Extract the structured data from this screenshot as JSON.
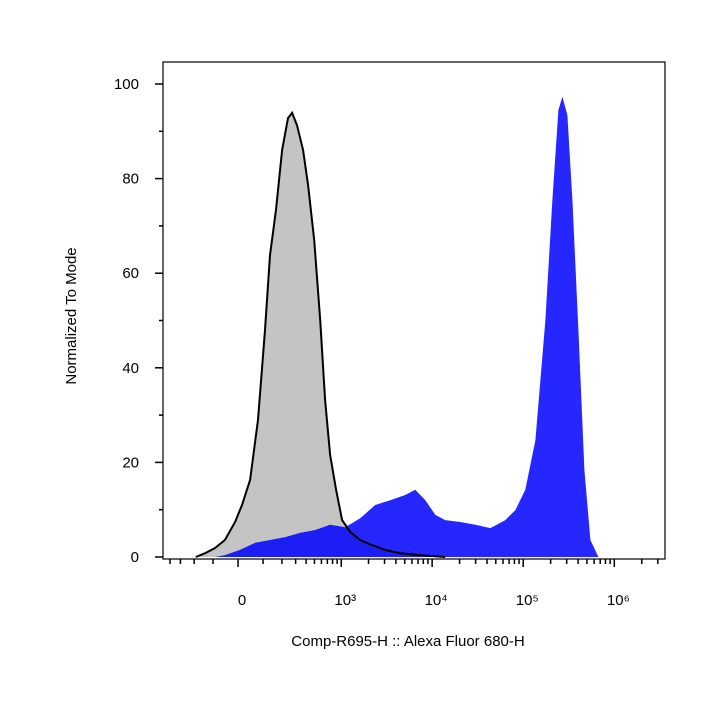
{
  "chart_data": {
    "type": "histogram-overlay",
    "x_scale": "biexponential",
    "xlabel": "Comp-R695-H :: Alexa Fluor 680-H",
    "ylabel": "Normalized To Mode",
    "xlim": [
      -482,
      3600000
    ],
    "ylim": [
      0,
      100
    ],
    "xticks": [
      0,
      {
        "value": 1000,
        "label": "10³"
      },
      {
        "value": 10000,
        "label": "10⁴"
      },
      {
        "value": 100000,
        "label": "10⁵"
      },
      {
        "value": 1000000,
        "label": "10⁶"
      }
    ],
    "xminor_ticks": [
      -400,
      -300,
      -200,
      -100,
      100,
      200,
      300,
      400,
      500,
      600,
      700,
      800,
      900,
      2000,
      3000,
      4000,
      5000,
      6000,
      7000,
      8000,
      9000,
      20000,
      30000,
      40000,
      50000,
      60000,
      70000,
      80000,
      90000,
      200000,
      300000,
      400000,
      500000,
      600000,
      700000,
      800000,
      900000,
      2000000,
      3000000
    ],
    "yticks": [
      0,
      20,
      40,
      60,
      80,
      100
    ],
    "yminor_ticks": [
      10,
      30,
      50,
      70,
      90
    ],
    "series": [
      {
        "color": "#c4c4c4",
        "x": [
          -190,
          -138,
          -91,
          -50,
          -11,
          15,
          46,
          78,
          109,
          133,
          165,
          201,
          241,
          271,
          312,
          369,
          422,
          496,
          581,
          661,
          752,
          877,
          1022,
          1255,
          1619,
          2193,
          3049,
          4462,
          7400,
          13927
        ],
        "values": [
          0,
          0.8,
          1.9,
          3.6,
          7.4,
          11.0,
          16.3,
          29.0,
          48.0,
          63.8,
          73.4,
          86.0,
          92.8,
          93.9,
          91.3,
          86.0,
          78.6,
          67.0,
          50.1,
          33.2,
          21.6,
          14.2,
          7.8,
          5.3,
          3.6,
          2.5,
          1.5,
          0.8,
          0.4,
          0
        ]
      },
      {
        "color": "#0000ff",
        "x": [
          -91,
          -50,
          7,
          66,
          133,
          221,
          339,
          510,
          752,
          1105,
          1619,
          2367,
          3463,
          5061,
          6522,
          8432,
          10822,
          13927,
          20369,
          29840,
          43600,
          63600,
          81900,
          105500,
          135900,
          175000,
          208800,
          243200,
          269000,
          305300,
          346500,
          403300,
          469500,
          546600,
          668500
        ],
        "values": [
          0,
          0.4,
          1.5,
          3.0,
          3.6,
          4.2,
          5.1,
          5.7,
          6.8,
          6.3,
          8.2,
          11.0,
          12.0,
          13.1,
          14.2,
          12.0,
          8.9,
          7.8,
          7.4,
          6.8,
          6.1,
          7.8,
          9.9,
          14.2,
          24.7,
          50.1,
          75.5,
          94.5,
          97.3,
          93.4,
          75.5,
          48.0,
          18.4,
          3.6,
          0
        ]
      }
    ]
  }
}
